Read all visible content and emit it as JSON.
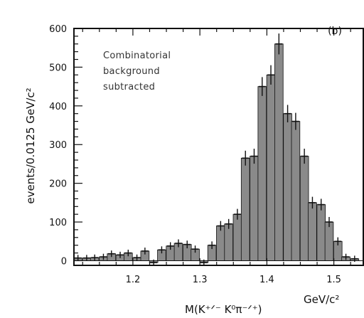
{
  "chart_data": {
    "type": "bar",
    "panel_label": "(b)",
    "xlabel": "M(K⁺ᐟ⁻ K⁰π⁻ᐟ⁺)",
    "xlabel_unit": "GeV/c²",
    "ylabel": "events/0.0125 GeV/c²",
    "annotation_lines": [
      "Combinatorial",
      "background",
      "subtracted"
    ],
    "xlim": [
      1.112,
      1.545
    ],
    "ylim": [
      -12,
      600
    ],
    "bin_width": 0.0125,
    "x_ticks": [
      {
        "value": 1.2,
        "label": "1.2"
      },
      {
        "value": 1.3,
        "label": "1.3"
      },
      {
        "value": 1.4,
        "label": "1.4"
      },
      {
        "value": 1.5,
        "label": "1.5"
      }
    ],
    "y_ticks": [
      {
        "value": 0,
        "label": "0"
      },
      {
        "value": 100,
        "label": "100"
      },
      {
        "value": 200,
        "label": "200"
      },
      {
        "value": 300,
        "label": "300"
      },
      {
        "value": 400,
        "label": "400"
      },
      {
        "value": 500,
        "label": "500"
      },
      {
        "value": 600,
        "label": "600"
      }
    ],
    "x": [
      1.118,
      1.131,
      1.143,
      1.156,
      1.168,
      1.181,
      1.193,
      1.206,
      1.218,
      1.231,
      1.243,
      1.256,
      1.268,
      1.281,
      1.293,
      1.306,
      1.318,
      1.331,
      1.343,
      1.356,
      1.368,
      1.381,
      1.393,
      1.406,
      1.418,
      1.431,
      1.443,
      1.456,
      1.468,
      1.481,
      1.493,
      1.506,
      1.518,
      1.531
    ],
    "values": [
      7,
      7,
      8,
      10,
      18,
      15,
      20,
      8,
      25,
      -5,
      28,
      38,
      45,
      42,
      30,
      -5,
      40,
      90,
      95,
      120,
      265,
      270,
      450,
      480,
      560,
      380,
      360,
      270,
      150,
      145,
      100,
      50,
      10,
      5
    ],
    "colors": {
      "fill": "#8a8a8a",
      "stroke": "#111111",
      "error": "#111111"
    }
  }
}
